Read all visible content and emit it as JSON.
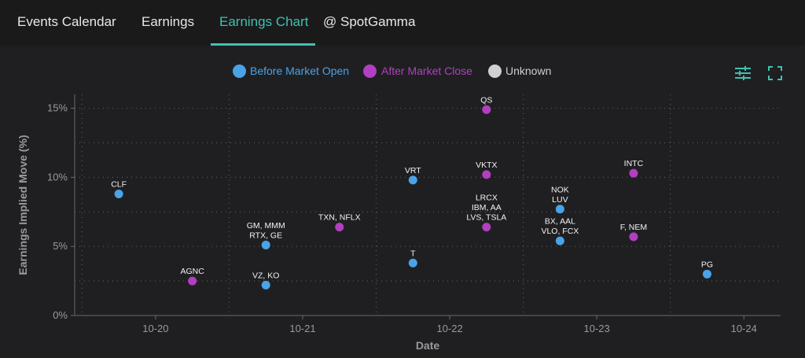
{
  "tabs": [
    {
      "label": "Events Calendar"
    },
    {
      "label": "Earnings"
    },
    {
      "label": "Earnings Chart"
    },
    {
      "label": "@ SpotGamma"
    }
  ],
  "legend": [
    {
      "label": "Before Market Open",
      "color": "#4aa3e8"
    },
    {
      "label": "After Market Close",
      "color": "#b13fc0"
    },
    {
      "label": "Unknown",
      "color": "#d0d0d0"
    }
  ],
  "toolbar": {
    "settings_icon": "sliders-icon",
    "fullscreen_icon": "expand-icon",
    "accent": "#3fc1b0"
  },
  "chart_data": {
    "type": "scatter",
    "title": "",
    "xlabel": "Date",
    "ylabel": "Earnings Implied Move (%)",
    "xlim": [
      -0.55,
      4.25
    ],
    "ylim": [
      0,
      16
    ],
    "x_ticks": [
      {
        "v": 0,
        "label": "10-20"
      },
      {
        "v": 1,
        "label": "10-21"
      },
      {
        "v": 2,
        "label": "10-22"
      },
      {
        "v": 3,
        "label": "10-23"
      },
      {
        "v": 4,
        "label": "10-24"
      }
    ],
    "y_ticks": [
      {
        "v": 0,
        "label": "0%"
      },
      {
        "v": 5,
        "label": "5%"
      },
      {
        "v": 10,
        "label": "10%"
      },
      {
        "v": 15,
        "label": "15%"
      }
    ],
    "grid": true,
    "series": [
      {
        "name": "Before Market Open",
        "color": "#4aa3e8",
        "points": [
          {
            "x": -0.25,
            "y": 8.8,
            "label": [
              "CLF"
            ]
          },
          {
            "x": 0.75,
            "y": 5.1,
            "label": [
              "GM, MMM",
              "RTX, GE"
            ]
          },
          {
            "x": 0.75,
            "y": 2.2,
            "label": [
              "VZ, KO"
            ]
          },
          {
            "x": 1.75,
            "y": 9.8,
            "label": [
              "VRT"
            ]
          },
          {
            "x": 1.75,
            "y": 3.8,
            "label": [
              "T"
            ]
          },
          {
            "x": 2.75,
            "y": 7.7,
            "label": [
              "NOK",
              "LUV"
            ]
          },
          {
            "x": 2.75,
            "y": 5.4,
            "label": [
              "BX, AAL",
              "VLO, FCX"
            ]
          },
          {
            "x": 3.75,
            "y": 3.0,
            "label": [
              "PG"
            ]
          }
        ]
      },
      {
        "name": "After Market Close",
        "color": "#b13fc0",
        "points": [
          {
            "x": 0.25,
            "y": 2.5,
            "label": [
              "AGNC"
            ]
          },
          {
            "x": 1.25,
            "y": 6.4,
            "label": [
              "TXN, NFLX"
            ]
          },
          {
            "x": 2.25,
            "y": 14.9,
            "label": [
              "QS"
            ]
          },
          {
            "x": 2.25,
            "y": 10.2,
            "label": [
              "VKTX"
            ]
          },
          {
            "x": 2.25,
            "y": 6.4,
            "label": [
              "LRCX",
              "IBM, AA",
              "LVS, TSLA"
            ]
          },
          {
            "x": 3.25,
            "y": 10.3,
            "label": [
              "INTC"
            ]
          },
          {
            "x": 3.25,
            "y": 5.7,
            "label": [
              "F, NEM"
            ]
          }
        ]
      },
      {
        "name": "Unknown",
        "color": "#d0d0d0",
        "points": []
      }
    ]
  }
}
